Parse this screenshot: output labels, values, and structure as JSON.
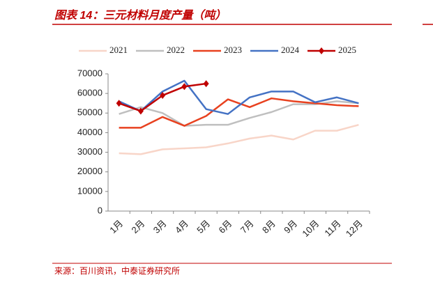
{
  "chart_data": {
    "type": "line",
    "title": "图表 14：三元材料月度产量（吨）",
    "source": "来源：百川资讯，中泰证券研究所",
    "categories": [
      "1月",
      "2月",
      "3月",
      "4月",
      "5月",
      "6月",
      "7月",
      "8月",
      "9月",
      "10月",
      "11月",
      "12月"
    ],
    "series": [
      {
        "name": "2021",
        "color": "#f8d5c8",
        "values": [
          29500,
          29000,
          31500,
          32000,
          32500,
          34500,
          37000,
          38500,
          36500,
          41000,
          41000,
          44000
        ]
      },
      {
        "name": "2022",
        "color": "#bfbfbf",
        "values": [
          49500,
          53000,
          50000,
          43500,
          44000,
          44000,
          47500,
          50500,
          54500,
          54500,
          56000,
          55000
        ]
      },
      {
        "name": "2023",
        "color": "#e8411f",
        "values": [
          42500,
          42500,
          48000,
          43500,
          48500,
          57000,
          53000,
          57500,
          56000,
          55000,
          54000,
          53500
        ]
      },
      {
        "name": "2024",
        "color": "#4472c4",
        "values": [
          56000,
          51000,
          61000,
          66500,
          52000,
          49500,
          58000,
          61000,
          61000,
          55500,
          58000,
          55000
        ]
      },
      {
        "name": "2025",
        "color": "#c00000",
        "marker": "diamond",
        "values": [
          55000,
          51000,
          59000,
          63500,
          65000,
          null,
          null,
          null,
          null,
          null,
          null,
          null
        ]
      }
    ],
    "ylim": [
      0,
      70000
    ],
    "yticks": [
      0,
      10000,
      20000,
      30000,
      40000,
      50000,
      60000,
      70000
    ]
  }
}
